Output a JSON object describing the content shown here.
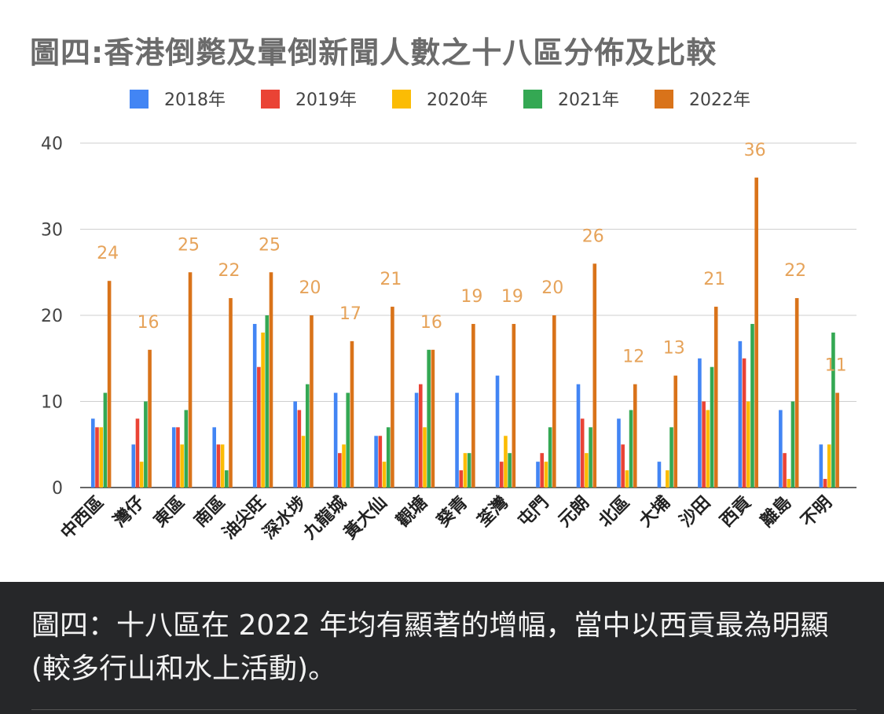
{
  "chart_data": {
    "type": "bar",
    "title": "圖四:香港倒斃及暈倒新聞人數之十八區分佈及比較",
    "xlabel": "",
    "ylabel": "",
    "ylim": [
      0,
      40
    ],
    "yticks": [
      0,
      10,
      20,
      30,
      40
    ],
    "grid": true,
    "legend_position": "top",
    "categories": [
      "中西區",
      "灣仔",
      "東區",
      "南區",
      "油尖旺",
      "深水埗",
      "九龍城",
      "黃大仙",
      "觀塘",
      "葵青",
      "荃灣",
      "屯門",
      "元朗",
      "北區",
      "大埔",
      "沙田",
      "西貢",
      "離島",
      "不明"
    ],
    "series": [
      {
        "name": "2018年",
        "color": "#4285f4",
        "values": [
          8,
          5,
          7,
          7,
          19,
          10,
          11,
          6,
          11,
          11,
          13,
          3,
          12,
          8,
          3,
          15,
          17,
          9,
          5
        ]
      },
      {
        "name": "2019年",
        "color": "#ea4335",
        "values": [
          7,
          8,
          7,
          5,
          14,
          9,
          4,
          6,
          12,
          2,
          3,
          4,
          8,
          5,
          0,
          10,
          15,
          4,
          1
        ]
      },
      {
        "name": "2020年",
        "color": "#fbbc04",
        "values": [
          7,
          3,
          5,
          5,
          18,
          6,
          5,
          3,
          7,
          4,
          6,
          3,
          4,
          2,
          2,
          9,
          10,
          1,
          5
        ]
      },
      {
        "name": "2021年",
        "color": "#34a853",
        "values": [
          11,
          10,
          9,
          2,
          20,
          12,
          11,
          7,
          16,
          4,
          4,
          7,
          7,
          9,
          7,
          14,
          19,
          10,
          18
        ]
      },
      {
        "name": "2022年",
        "color": "#d9731a",
        "values": [
          24,
          16,
          25,
          22,
          25,
          20,
          17,
          21,
          16,
          19,
          19,
          20,
          26,
          12,
          13,
          21,
          36,
          22,
          11
        ]
      }
    ],
    "data_labels_series": "2022年",
    "data_label_color": "#e6a35a"
  },
  "caption": {
    "text": "圖四：十八區在 2022 年均有顯著的增幅，當中以西貢最為明顯 (較多行山和水上活動)。"
  }
}
